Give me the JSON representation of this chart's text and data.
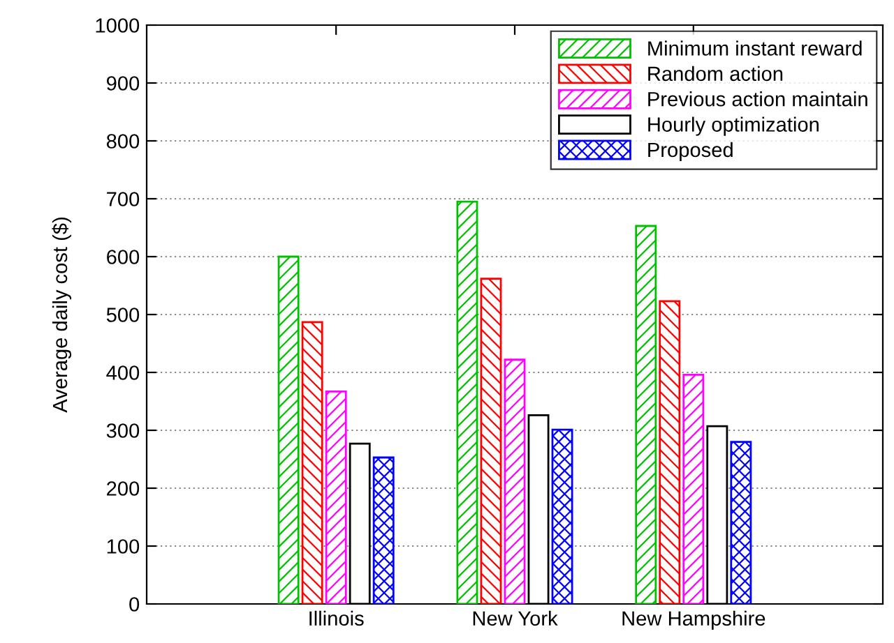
{
  "chart_data": {
    "type": "bar",
    "ylabel": "Average daily cost ($)",
    "categories": [
      "Illinois",
      "New York",
      "New Hampshire"
    ],
    "series": [
      {
        "name": "Minimum instant reward",
        "color": "#00c000",
        "values": [
          600,
          695,
          653
        ]
      },
      {
        "name": "Random action",
        "color": "#ff0000",
        "values": [
          487,
          562,
          523
        ]
      },
      {
        "name": "Previous action maintain",
        "color": "#ff00ff",
        "values": [
          367,
          422,
          396
        ]
      },
      {
        "name": "Hourly optimization",
        "color": "#000000",
        "values": [
          277,
          326,
          307
        ]
      },
      {
        "name": "Proposed",
        "color": "#0000ff",
        "values": [
          253,
          301,
          280
        ]
      }
    ],
    "ylim": [
      0,
      1000
    ],
    "yticks": [
      0,
      100,
      200,
      300,
      400,
      500,
      600,
      700,
      800,
      900,
      1000
    ],
    "grid": "y",
    "legend": "top right"
  }
}
